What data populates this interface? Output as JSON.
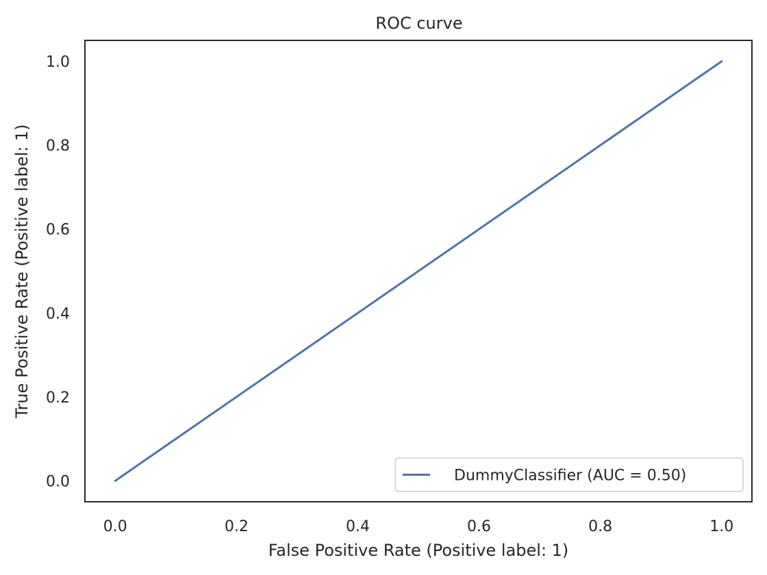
{
  "chart_data": {
    "type": "line",
    "title": "ROC curve",
    "xlabel": "False Positive Rate (Positive label: 1)",
    "ylabel": "True Positive Rate (Positive label: 1)",
    "xlim": [
      -0.05,
      1.05
    ],
    "ylim": [
      -0.05,
      1.05
    ],
    "xticks": [
      0.0,
      0.2,
      0.4,
      0.6,
      0.8,
      1.0
    ],
    "yticks": [
      0.0,
      0.2,
      0.4,
      0.6,
      0.8,
      1.0
    ],
    "xtick_labels": [
      "0.0",
      "0.2",
      "0.4",
      "0.6",
      "0.8",
      "1.0"
    ],
    "ytick_labels": [
      "0.0",
      "0.2",
      "0.4",
      "0.6",
      "0.8",
      "1.0"
    ],
    "grid": false,
    "legend_position": "lower-right",
    "series": [
      {
        "name": "DummyClassifier (AUC = 0.50)",
        "x": [
          0.0,
          1.0
        ],
        "y": [
          0.0,
          1.0
        ],
        "color": "#4c72b0"
      }
    ]
  }
}
